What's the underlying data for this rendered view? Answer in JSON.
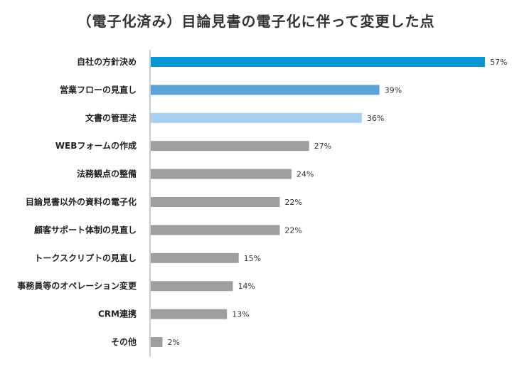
{
  "chart_data": {
    "type": "bar",
    "orientation": "horizontal",
    "title": "（電子化済み）目論見書の電子化に伴って変更した点",
    "categories": [
      "自社の方針決め",
      "営業フローの見直し",
      "文書の管理法",
      "WEBフォームの作成",
      "法務観点の整備",
      "目論見書以外の資料の電子化",
      "顧客サポート体制の見直し",
      "トークスクリプトの見直し",
      "事務員等のオペレーション変更",
      "CRM連携",
      "その他"
    ],
    "values": [
      57,
      39,
      36,
      27,
      24,
      22,
      22,
      15,
      14,
      13,
      2
    ],
    "value_labels": [
      "57%",
      "39%",
      "36%",
      "27%",
      "24%",
      "22%",
      "22%",
      "15%",
      "14%",
      "13%",
      "2%"
    ],
    "unit": "%",
    "xlim": [
      0,
      57
    ],
    "bar_colors": [
      "#0a96d2",
      "#5ba3d6",
      "#a9cfee",
      "#9e9e9e",
      "#9e9e9e",
      "#9e9e9e",
      "#9e9e9e",
      "#9e9e9e",
      "#9e9e9e",
      "#9e9e9e",
      "#9e9e9e"
    ],
    "axis_color": "#999999",
    "grid": false,
    "legend": "none"
  }
}
